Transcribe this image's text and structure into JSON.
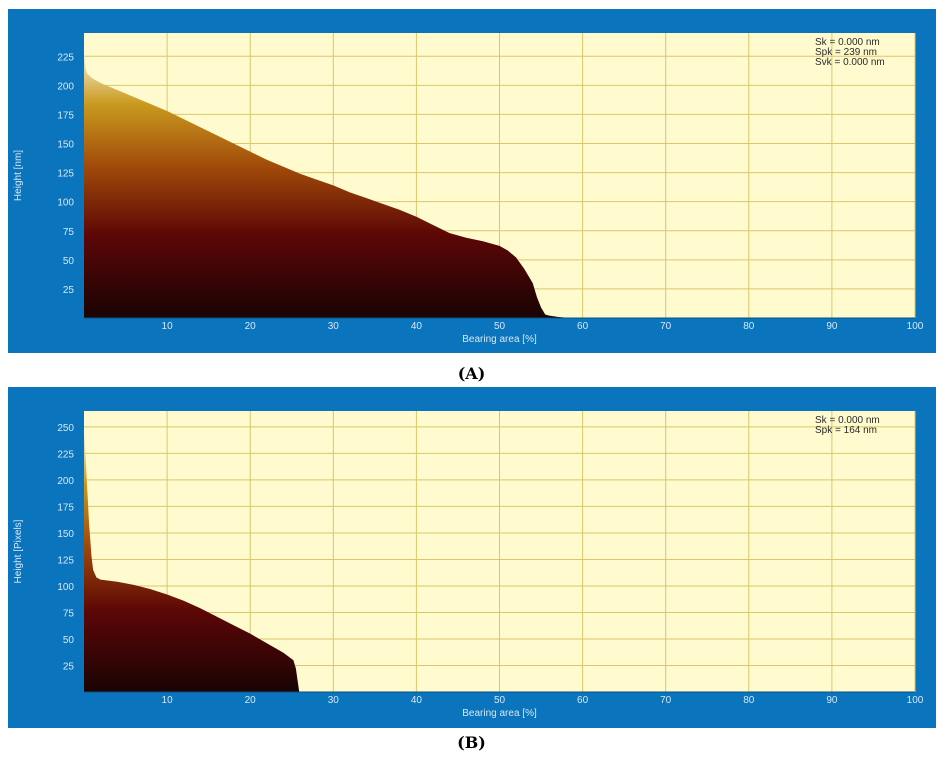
{
  "chart_data": [
    {
      "type": "area",
      "caption": "(A)",
      "xlabel": "Bearing area [%]",
      "ylabel": "Height [nm]",
      "xlim": [
        0,
        100
      ],
      "ylim": [
        0,
        245
      ],
      "xticks": [
        10,
        20,
        30,
        40,
        50,
        60,
        70,
        80,
        90,
        100
      ],
      "yticks": [
        25,
        50,
        75,
        100,
        125,
        150,
        175,
        200,
        225
      ],
      "grid": true,
      "annotations": [
        "Sk = 0.000 nm",
        "Spk =   239 nm",
        "Svk = 0.000 nm"
      ],
      "annotation_position": "top-right",
      "x": [
        0,
        0.1,
        0.2,
        0.4,
        1,
        2,
        4,
        6,
        8,
        10,
        12,
        14,
        16,
        18,
        20,
        22,
        24,
        26,
        28,
        30,
        32,
        34,
        36,
        38,
        40,
        42,
        44,
        46,
        48,
        50,
        51,
        52,
        53,
        54,
        54.5,
        55,
        55.5,
        56,
        57,
        58.5
      ],
      "y": [
        236,
        222,
        214,
        210,
        206,
        202,
        196,
        190,
        184,
        178,
        171,
        164,
        157,
        150,
        143,
        136,
        130,
        124,
        119,
        114,
        108,
        103,
        98,
        93,
        87,
        80,
        73,
        69,
        66,
        62,
        58,
        52,
        42,
        30,
        18,
        9,
        3,
        2,
        1,
        0
      ]
    },
    {
      "type": "area",
      "caption": "(B)",
      "xlabel": "Bearing area [%]",
      "ylabel": "Height [Pixels]",
      "xlim": [
        0,
        100
      ],
      "ylim": [
        0,
        265
      ],
      "xticks": [
        10,
        20,
        30,
        40,
        50,
        60,
        70,
        80,
        90,
        100
      ],
      "yticks": [
        25,
        50,
        75,
        100,
        125,
        150,
        175,
        200,
        225,
        250
      ],
      "grid": true,
      "annotations": [
        "Sk = 0.000 nm",
        "Spk =   164 nm"
      ],
      "annotation_position": "top-right",
      "x": [
        0,
        0.3,
        0.6,
        0.9,
        1.1,
        1.5,
        2,
        4,
        6,
        8,
        10,
        12,
        14,
        16,
        18,
        20,
        22,
        24,
        25.2,
        25.5,
        25.9
      ],
      "y": [
        252,
        205,
        160,
        128,
        115,
        108,
        106,
        104,
        101,
        97,
        92,
        86,
        79,
        71,
        63,
        55,
        46,
        37,
        30,
        22,
        0
      ]
    }
  ]
}
